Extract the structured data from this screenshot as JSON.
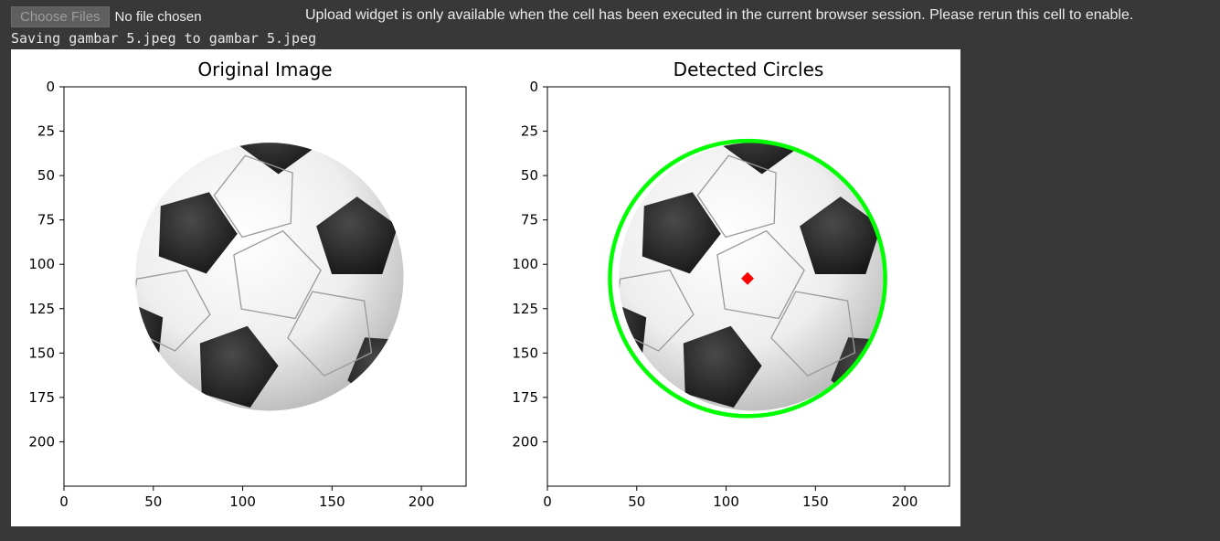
{
  "upload": {
    "choose_label": "Choose Files",
    "no_file_label": "No file chosen",
    "message": "Upload widget is only available when the cell has been executed in the current browser session. Please rerun this cell to enable."
  },
  "output": {
    "log": "Saving gambar 5.jpeg to gambar 5.jpeg"
  },
  "chart_data": [
    {
      "type": "image",
      "title": "Original Image",
      "x_ticks": [
        0,
        50,
        100,
        150,
        200
      ],
      "y_ticks": [
        0,
        25,
        50,
        75,
        100,
        125,
        150,
        175,
        200
      ],
      "xlim": [
        0,
        225
      ],
      "ylim": [
        225,
        0
      ],
      "content": "soccer-ball"
    },
    {
      "type": "image",
      "title": "Detected Circles",
      "x_ticks": [
        0,
        50,
        100,
        150,
        200
      ],
      "y_ticks": [
        0,
        25,
        50,
        75,
        100,
        125,
        150,
        175,
        200
      ],
      "xlim": [
        0,
        225
      ],
      "ylim": [
        225,
        0
      ],
      "content": "soccer-ball",
      "detected_circle": {
        "cx": 112,
        "cy": 108,
        "r": 77,
        "color": "#00ff00"
      },
      "center_marker": {
        "x": 112,
        "y": 108,
        "color": "#ff0000"
      }
    }
  ]
}
